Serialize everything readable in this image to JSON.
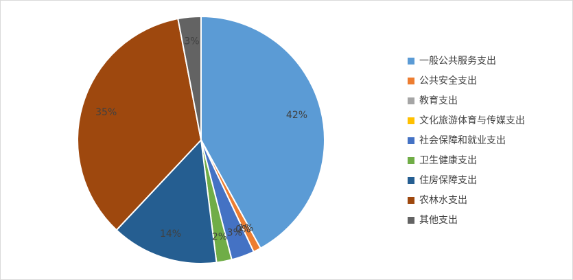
{
  "chart_data": {
    "type": "pie",
    "categories": [
      "一般公共服务支出",
      "公共安全支出",
      "教育支出",
      "文化旅游体育与传媒支出",
      "社会保障和就业支出",
      "卫生健康支出",
      "住房保障支出",
      "农林水支出",
      "其他支出"
    ],
    "values": [
      42,
      1,
      0,
      0,
      3,
      2,
      14,
      35,
      3
    ],
    "value_labels": [
      "42%",
      "1%",
      "0%",
      "0%",
      "3%",
      "2%",
      "14%",
      "35%",
      "3%"
    ],
    "colors": [
      "#5b9bd5",
      "#ed7d31",
      "#a5a5a5",
      "#ffc000",
      "#4472c4",
      "#70ad47",
      "#255e91",
      "#9e480e",
      "#636363"
    ],
    "legend": "right"
  }
}
